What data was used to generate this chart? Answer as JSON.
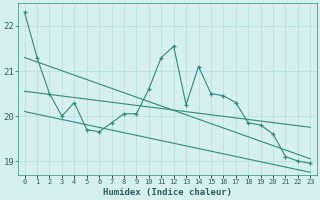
{
  "xlabel": "Humidex (Indice chaleur)",
  "x": [
    0,
    1,
    2,
    3,
    4,
    5,
    6,
    7,
    8,
    9,
    10,
    11,
    12,
    13,
    14,
    15,
    16,
    17,
    18,
    19,
    20,
    21,
    22,
    23
  ],
  "y_main": [
    22.3,
    21.3,
    20.5,
    20.0,
    20.3,
    19.7,
    19.65,
    19.85,
    20.05,
    20.05,
    20.6,
    21.3,
    21.55,
    20.25,
    21.1,
    20.5,
    20.45,
    20.3,
    19.85,
    19.8,
    19.6,
    19.1,
    19.0,
    18.95
  ],
  "trend_upper_start": 21.3,
  "trend_upper_end": 19.05,
  "trend_mid_start": 20.55,
  "trend_mid_end": 19.75,
  "trend_lower_start": 20.1,
  "trend_lower_end": 18.75,
  "color": "#2e8b7a",
  "bg_color": "#d6f0ef",
  "grid_color": "#b8dede",
  "ylim": [
    18.7,
    22.5
  ],
  "yticks": [
    19,
    20,
    21,
    22
  ],
  "xlim": [
    -0.5,
    23.5
  ],
  "font_color": "#2e5e5a"
}
